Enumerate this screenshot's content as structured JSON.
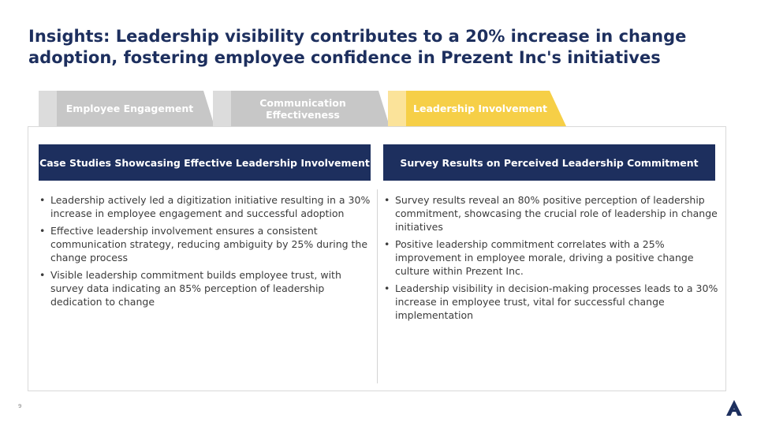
{
  "title": "Insights: Leadership visibility contributes to a 20% increase in change adoption, fostering employee confidence in Prezent Inc's initiatives",
  "tabs": [
    {
      "label": "Employee Engagement",
      "active": false
    },
    {
      "label": "Communication Effectiveness",
      "active": false
    },
    {
      "label": "Leadership Involvement",
      "active": true
    }
  ],
  "left_column": {
    "header": "Case Studies Showcasing Effective Leadership Involvement",
    "bullets": [
      "Leadership actively led a digitization initiative resulting in a 30% increase in employee engagement and successful adoption",
      "Effective leadership involvement ensures a consistent communication strategy, reducing ambiguity by 25% during the change process",
      "Visible leadership commitment builds employee trust, with survey data indicating an 85% perception of leadership dedication to change"
    ]
  },
  "right_column": {
    "header": "Survey Results on Perceived Leadership Commitment",
    "bullets": [
      "Survey results reveal an 80% positive perception of leadership commitment, showcasing the crucial role of leadership in change initiatives",
      "Positive leadership commitment correlates with a 25% improvement in employee morale, driving a positive change culture within Prezent Inc.",
      "Leadership visibility in decision-making processes leads to a 30% increase in employee trust, vital for successful change implementation"
    ]
  },
  "page_number": "9",
  "colors": {
    "navy": "#1d2f5e",
    "active_tab": "#f6cf47",
    "inactive_tab": "#c7c7c7"
  },
  "logo_icon": "company-logo-triangle-icon"
}
